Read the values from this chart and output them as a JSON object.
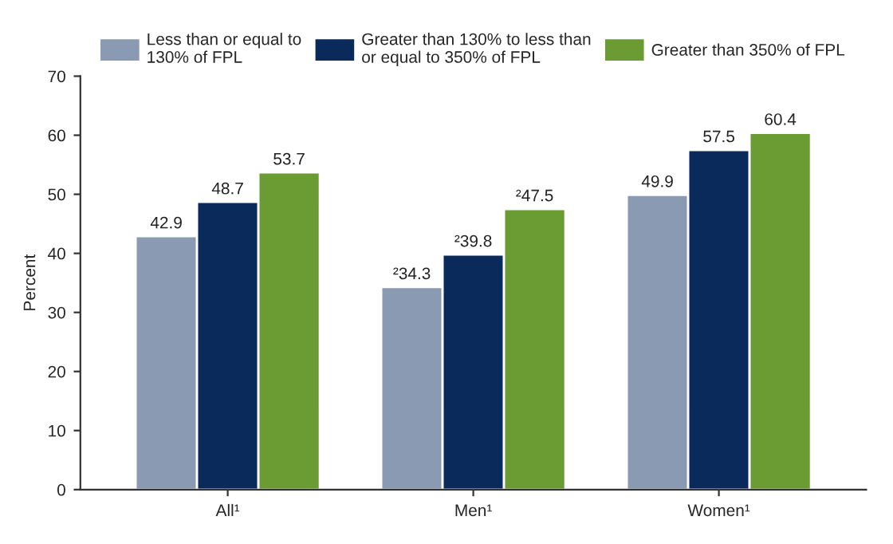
{
  "chart_data": {
    "type": "bar",
    "ylabel": "Percent",
    "categories": [
      "All¹",
      "Men¹",
      "Women¹"
    ],
    "series": [
      {
        "name": "Less than or equal to\n130% of FPL",
        "color": "#8a9ab2",
        "values": [
          42.9,
          34.3,
          49.9
        ],
        "value_labels": [
          "42.9",
          "²34.3",
          "49.9"
        ]
      },
      {
        "name": "Greater than 130% to less than\nor equal to 350% of FPL",
        "color": "#0b2a5c",
        "values": [
          48.7,
          39.8,
          57.5
        ],
        "value_labels": [
          "48.7",
          "²39.8",
          "57.5"
        ]
      },
      {
        "name": "Greater than 350% of FPL",
        "color": "#6b9b33",
        "values": [
          53.7,
          47.5,
          60.4
        ],
        "value_labels": [
          "53.7",
          "²47.5",
          "60.4"
        ]
      }
    ],
    "ylim": [
      0,
      70
    ],
    "yticks": [
      0,
      10,
      20,
      30,
      40,
      50,
      60,
      70
    ],
    "grid": false,
    "legend": "top"
  }
}
